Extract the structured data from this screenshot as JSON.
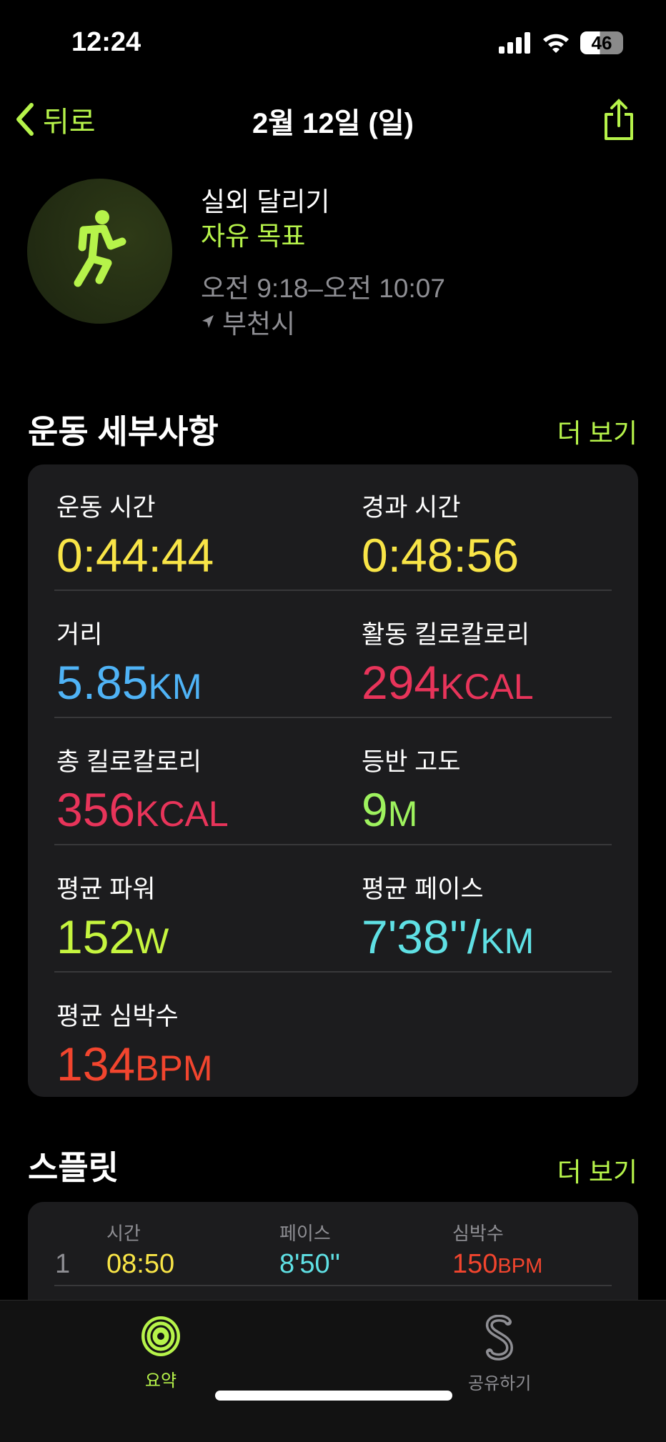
{
  "status": {
    "time": "12:24",
    "battery": "46"
  },
  "nav": {
    "back": "뒤로",
    "title": "2월 12일 (일)"
  },
  "workout": {
    "type": "실외 달리기",
    "goal": "자유 목표",
    "time_range": "오전 9:18–오전 10:07",
    "location": "부천시"
  },
  "details": {
    "title": "운동 세부사항",
    "more": "더 보기",
    "items": [
      {
        "label": "운동 시간",
        "value": "0:44:44",
        "unit": "",
        "color": "#f9e547"
      },
      {
        "label": "경과 시간",
        "value": "0:48:56",
        "unit": "",
        "color": "#f9e547"
      },
      {
        "label": "거리",
        "value": "5.85",
        "unit": "KM",
        "color": "#4fb3f6"
      },
      {
        "label": "활동 킬로칼로리",
        "value": "294",
        "unit": "KCAL",
        "color": "#e8345a"
      },
      {
        "label": "총 킬로칼로리",
        "value": "356",
        "unit": "KCAL",
        "color": "#e8345a"
      },
      {
        "label": "등반 고도",
        "value": "9",
        "unit": "M",
        "color": "#9ef25e"
      },
      {
        "label": "평균 파워",
        "value": "152",
        "unit": "W",
        "color": "#c6f53f"
      },
      {
        "label": "평균 페이스",
        "value": "7'38''/",
        "unit": "KM",
        "color": "#5fe0e4"
      },
      {
        "label": "평균 심박수",
        "value": "134",
        "unit": "BPM",
        "color": "#f2452e"
      }
    ]
  },
  "splits": {
    "title": "스플릿",
    "more": "더 보기",
    "headers": [
      "시간",
      "페이스",
      "심박수"
    ],
    "rows": [
      {
        "index": "1",
        "time": "08:50",
        "pace": "8'50''",
        "hr": "150",
        "hr_unit": "BPM"
      }
    ]
  },
  "tabs": [
    {
      "label": "요약",
      "active": true
    },
    {
      "label": "공유하기",
      "active": false
    }
  ],
  "colors": {
    "accent": "#b6f34a",
    "card": "#1c1c1e"
  }
}
